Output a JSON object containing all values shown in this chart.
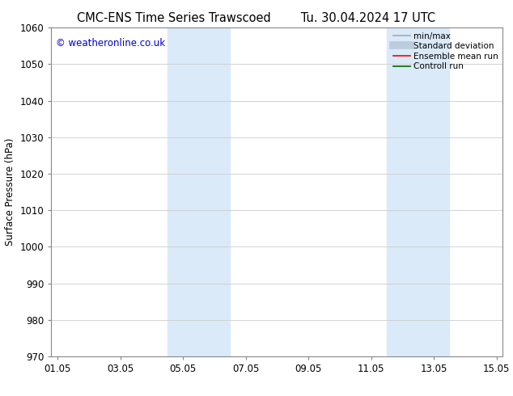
{
  "title_left": "CMC-ENS Time Series Trawscoed",
  "title_right": "Tu. 30.04.2024 17 UTC",
  "ylabel": "Surface Pressure (hPa)",
  "xlabel": "",
  "ylim": [
    970,
    1060
  ],
  "yticks": [
    970,
    980,
    990,
    1000,
    1010,
    1020,
    1030,
    1040,
    1050,
    1060
  ],
  "xtick_labels": [
    "01.05",
    "03.05",
    "05.05",
    "07.05",
    "09.05",
    "11.05",
    "13.05",
    "15.05"
  ],
  "xtick_positions": [
    0,
    2,
    4,
    6,
    8,
    10,
    12,
    14
  ],
  "xlim": [
    -0.2,
    14.2
  ],
  "shaded_bands": [
    {
      "x_start": 3.5,
      "x_end": 5.5
    },
    {
      "x_start": 10.5,
      "x_end": 12.5
    }
  ],
  "shaded_color": "#daeaf8",
  "watermark_text": "© weatheronline.co.uk",
  "watermark_color": "#0000cc",
  "background_color": "#ffffff",
  "grid_color": "#cccccc",
  "legend_items": [
    {
      "label": "min/max",
      "color": "#aaaaaa",
      "linewidth": 1.2
    },
    {
      "label": "Standard deviation",
      "color": "#bbccdd",
      "linewidth": 7
    },
    {
      "label": "Ensemble mean run",
      "color": "#ff0000",
      "linewidth": 1.2
    },
    {
      "label": "Controll run",
      "color": "#006600",
      "linewidth": 1.2
    }
  ],
  "title_fontsize": 10.5,
  "tick_fontsize": 8.5,
  "legend_fontsize": 7.5,
  "ylabel_fontsize": 8.5,
  "watermark_fontsize": 8.5
}
